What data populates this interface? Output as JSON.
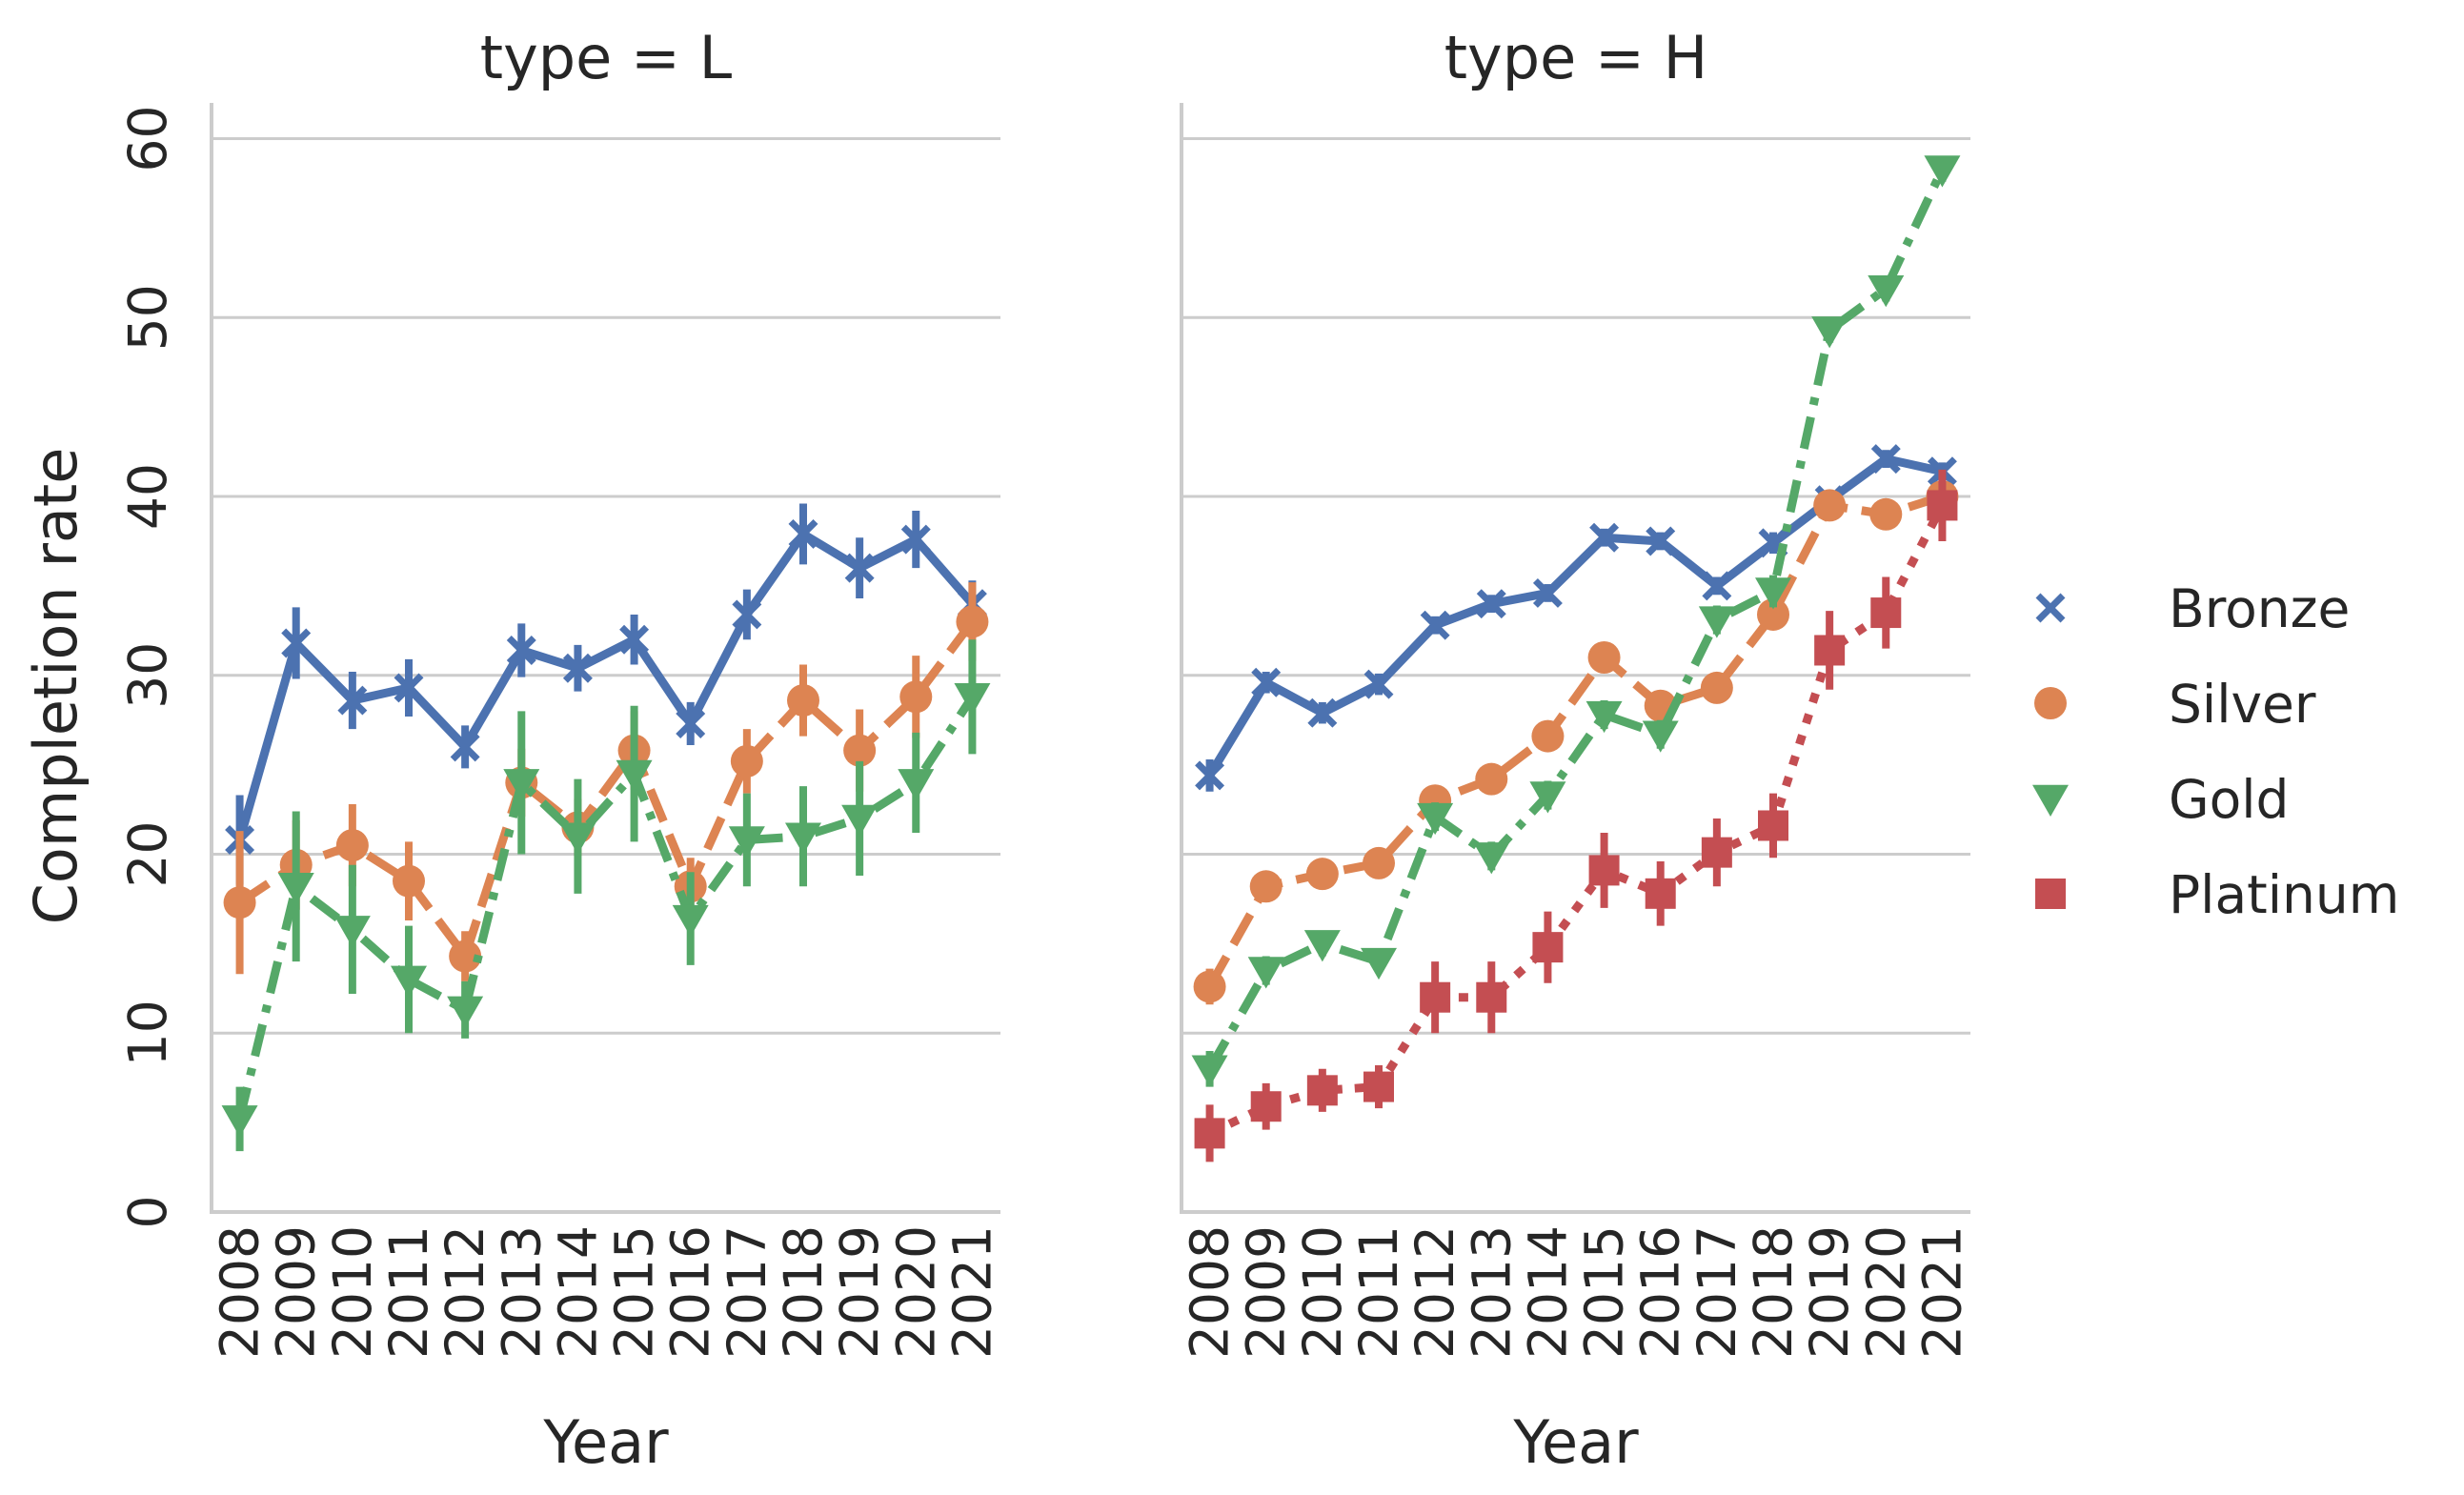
{
  "chart_data": {
    "type": "line",
    "ylabel": "Completion rate",
    "ylim": [
      0,
      62
    ],
    "yticks": [
      0,
      10,
      20,
      30,
      40,
      50,
      60
    ],
    "grid": "horizontal",
    "legend_placement": "right",
    "colors": {
      "Bronze": "#4c72b0",
      "Silver": "#dd8452",
      "Gold": "#55a868",
      "Platinum": "#c44e52"
    },
    "facets": [
      {
        "title": "type = L",
        "xlabel": "Year",
        "x": [
          "2008",
          "2009",
          "2010",
          "2011",
          "2012",
          "2013",
          "2014",
          "2015",
          "2016",
          "2017",
          "2018",
          "2019",
          "2020",
          "2021"
        ],
        "series": [
          {
            "name": "Bronze",
            "marker": "x",
            "dash": "solid",
            "values": [
              20.8,
              31.8,
              28.6,
              29.3,
              26.0,
              31.4,
              30.4,
              32.0,
              27.3,
              33.4,
              37.9,
              36.0,
              37.6,
              34.0
            ],
            "err": [
              2.5,
              2.0,
              1.6,
              1.6,
              1.2,
              1.5,
              1.3,
              1.4,
              1.2,
              1.4,
              1.7,
              1.7,
              1.6,
              1.3
            ]
          },
          {
            "name": "Silver",
            "marker": "o",
            "dash": "dashed",
            "values": [
              17.3,
              19.4,
              20.5,
              18.5,
              14.3,
              24.0,
              21.5,
              25.8,
              18.2,
              25.2,
              28.6,
              25.8,
              28.8,
              33.0
            ],
            "err": [
              4.0,
              2.5,
              2.3,
              2.2,
              1.4,
              1.9,
              1.6,
              2.2,
              1.6,
              1.8,
              2.0,
              2.3,
              2.3,
              2.2
            ]
          },
          {
            "name": "Gold",
            "marker": "v",
            "dash": "dashdot",
            "values": [
              5.2,
              18.2,
              15.8,
              13.0,
              11.3,
              24.0,
              21.0,
              24.5,
              16.4,
              20.8,
              21.0,
              22.0,
              24.0,
              28.8
            ],
            "err": [
              1.8,
              4.2,
              3.6,
              3.0,
              1.6,
              4.0,
              3.2,
              3.8,
              2.6,
              2.6,
              2.8,
              3.2,
              2.8,
              3.2
            ]
          }
        ]
      },
      {
        "title": "type = H",
        "xlabel": "Year",
        "x": [
          "2008",
          "2009",
          "2010",
          "2011",
          "2012",
          "2013",
          "2014",
          "2015",
          "2016",
          "2017",
          "2018",
          "2019",
          "2020",
          "2021"
        ],
        "series": [
          {
            "name": "Bronze",
            "marker": "x",
            "dash": "solid",
            "values": [
              24.4,
              29.6,
              27.9,
              29.5,
              32.8,
              34.0,
              34.6,
              37.7,
              37.5,
              35.0,
              37.4,
              39.8,
              42.1,
              41.4
            ],
            "err": [
              0.9,
              0.6,
              0.6,
              0.6,
              0.5,
              0.5,
              0.5,
              0.5,
              0.5,
              0.5,
              0.6,
              0.5,
              0.5,
              0.5
            ]
          },
          {
            "name": "Silver",
            "marker": "o",
            "dash": "dashed",
            "values": [
              12.6,
              18.2,
              18.9,
              19.5,
              23.0,
              24.2,
              26.6,
              31.0,
              28.3,
              29.3,
              33.4,
              39.5,
              39.0,
              40.0
            ],
            "err": [
              1.0,
              0.6,
              0.5,
              0.5,
              0.6,
              0.5,
              0.6,
              0.7,
              0.6,
              0.6,
              0.7,
              0.6,
              0.6,
              0.6
            ]
          },
          {
            "name": "Gold",
            "marker": "v",
            "dash": "dashdot",
            "values": [
              8.0,
              13.5,
              15.0,
              14.0,
              22.1,
              19.9,
              23.3,
              27.8,
              26.7,
              33.1,
              34.7,
              49.3,
              51.6,
              58.3
            ],
            "err": [
              1.0,
              0.8,
              0.7,
              0.6,
              0.8,
              0.8,
              0.8,
              0.8,
              0.8,
              0.8,
              0.9,
              0.7,
              0.7,
              0.7
            ]
          },
          {
            "name": "Platinum",
            "marker": "s",
            "dash": "dotted",
            "values": [
              4.4,
              5.9,
              6.8,
              7.0,
              12.0,
              12.0,
              14.8,
              19.1,
              17.8,
              20.1,
              21.6,
              31.4,
              33.5,
              39.5
            ],
            "err": [
              1.6,
              1.3,
              1.2,
              1.2,
              2.0,
              2.0,
              2.0,
              2.1,
              1.8,
              1.9,
              1.8,
              2.2,
              2.0,
              2.0
            ]
          }
        ]
      }
    ],
    "legend": [
      "Bronze",
      "Silver",
      "Gold",
      "Platinum"
    ]
  }
}
